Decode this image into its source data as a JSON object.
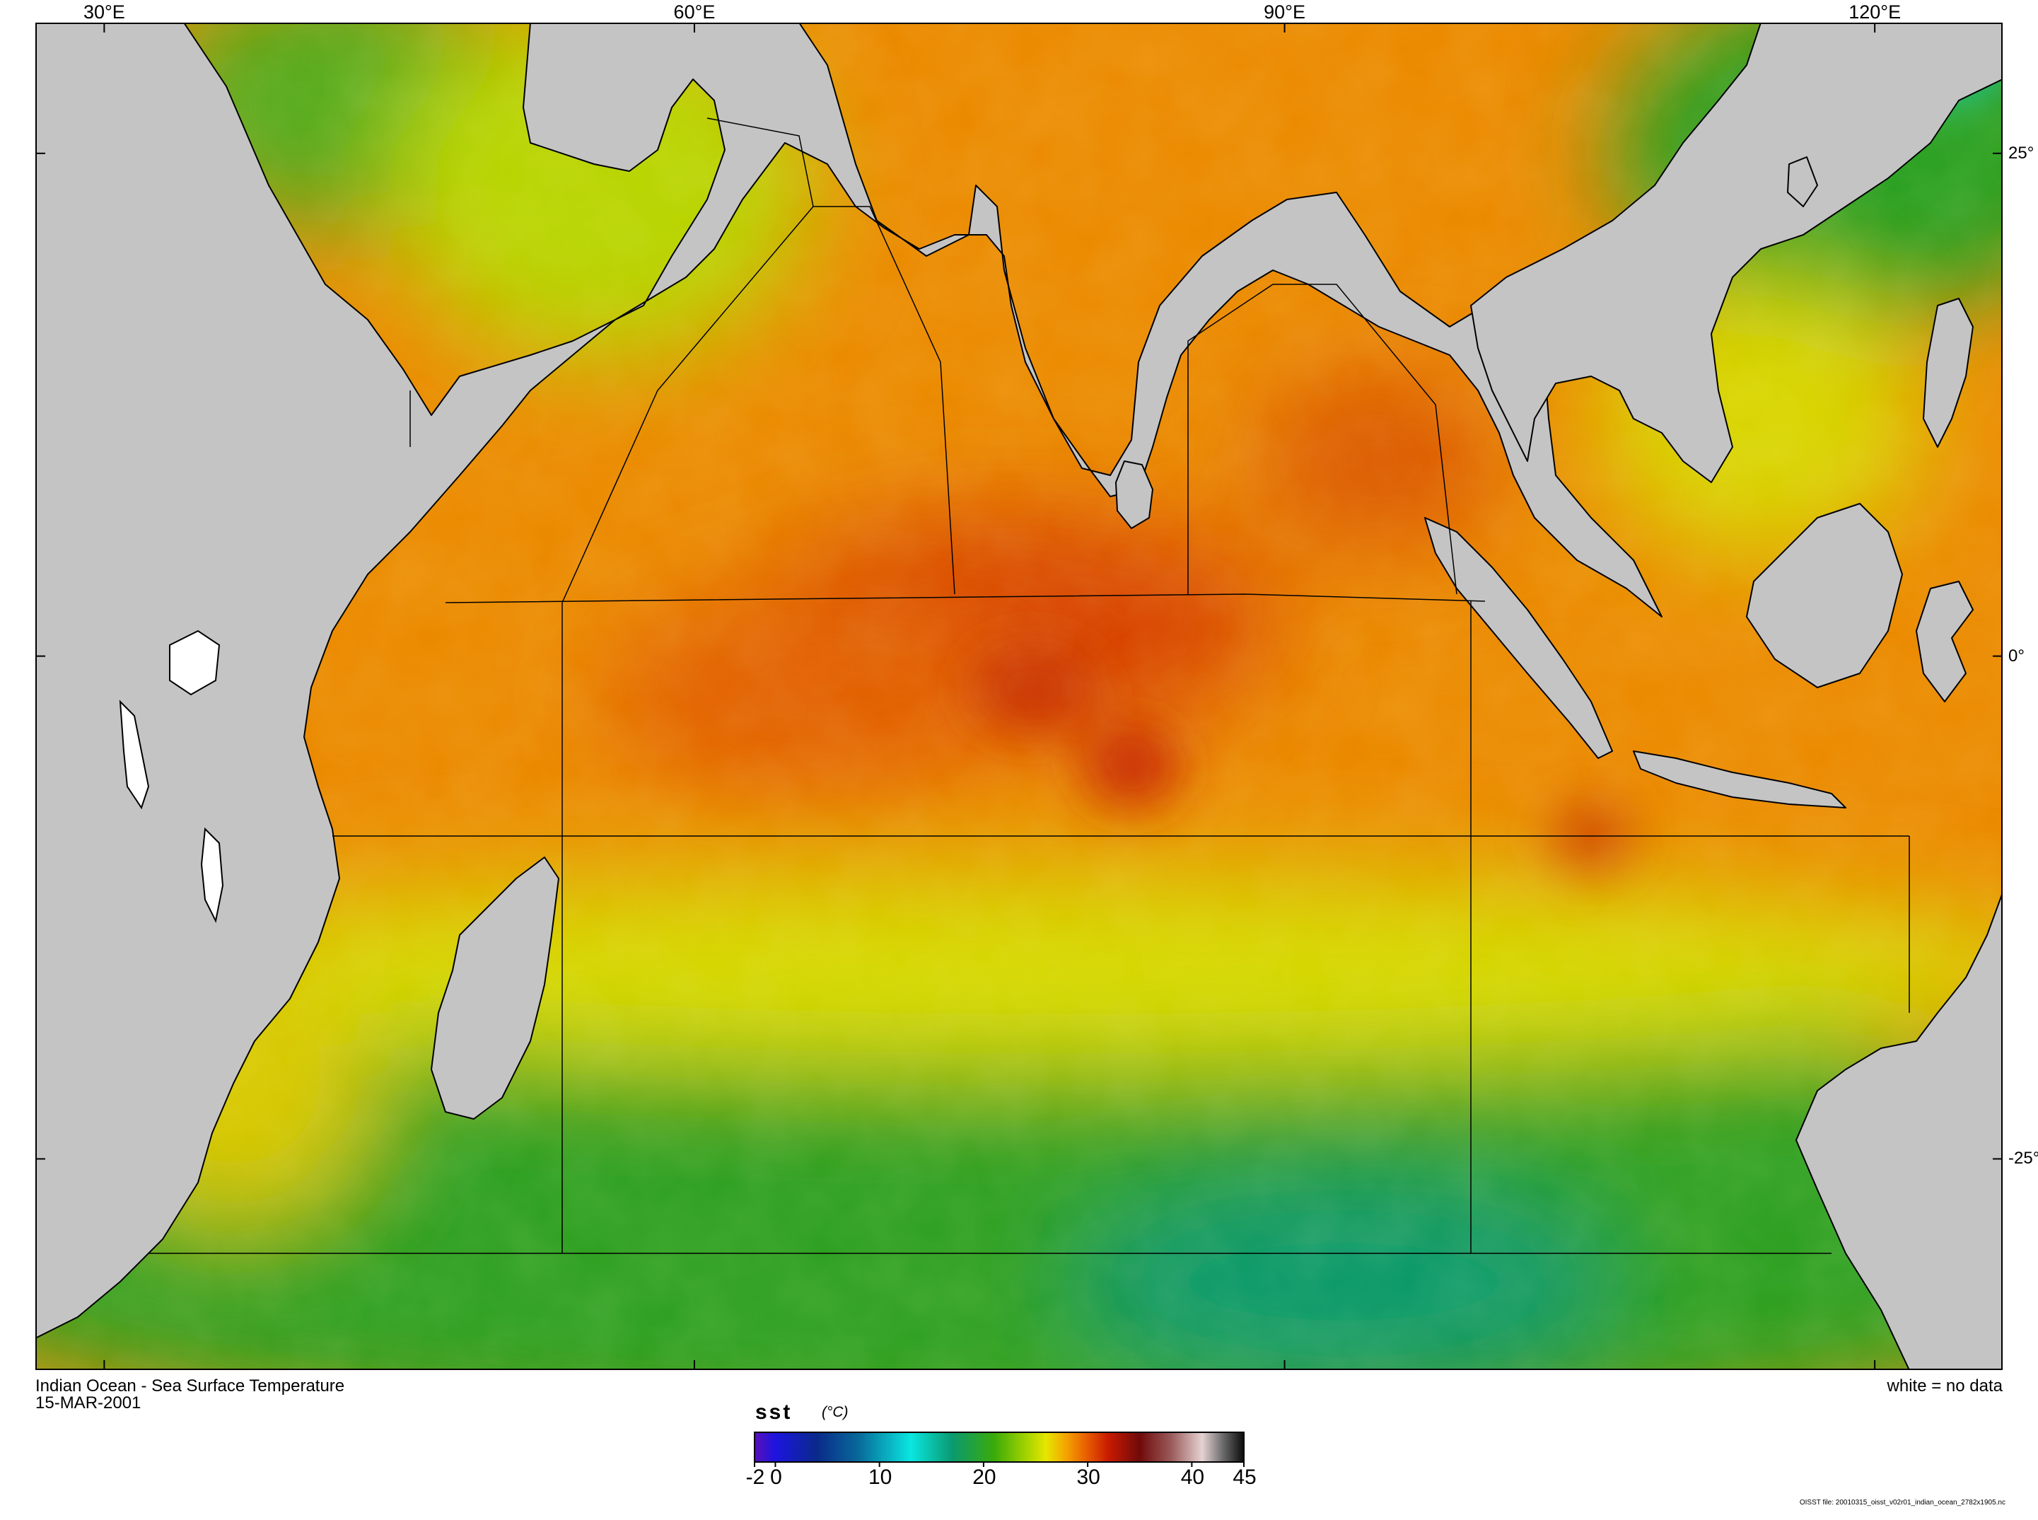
{
  "map": {
    "longitude_labels": [
      {
        "lon": 30,
        "text": "30°E"
      },
      {
        "lon": 60,
        "text": "60°E"
      },
      {
        "lon": 90,
        "text": "90°E"
      },
      {
        "lon": 120,
        "text": "120°E"
      }
    ],
    "latitude_labels": [
      {
        "lat": 25,
        "text": "25°"
      },
      {
        "lat": 0,
        "text": "0°"
      },
      {
        "lat": -25,
        "text": "-25°"
      }
    ],
    "extent": {
      "lon_min": 26.5,
      "lon_max": 126.5,
      "lat_min": -35.5,
      "lat_max": 31.5
    },
    "land_color": "#c4c4c4",
    "nodata_color": "#ffffff"
  },
  "caption": {
    "title": "Indian Ocean - Sea Surface Temperature",
    "date": "15-MAR-2001",
    "no_data_note": "white = no data"
  },
  "colorbar": {
    "variable": "sst",
    "units": "(°C)",
    "min": -2,
    "max": 45,
    "tick_labels": [
      {
        "value": -2,
        "text": "-2"
      },
      {
        "value": 0,
        "text": "0"
      },
      {
        "value": 10,
        "text": "10"
      },
      {
        "value": 20,
        "text": "20"
      },
      {
        "value": 30,
        "text": "30"
      },
      {
        "value": 40,
        "text": "40"
      },
      {
        "value": 45,
        "text": "45"
      }
    ],
    "color_stops": [
      {
        "value": -2,
        "color": "#5a10b8"
      },
      {
        "value": 0,
        "color": "#1c14e0"
      },
      {
        "value": 4,
        "color": "#0a2a8a"
      },
      {
        "value": 8,
        "color": "#086a9a"
      },
      {
        "value": 13,
        "color": "#0ae6e0"
      },
      {
        "value": 17,
        "color": "#0a9a70"
      },
      {
        "value": 21,
        "color": "#3aaa0a"
      },
      {
        "value": 24,
        "color": "#a0d200"
      },
      {
        "value": 26,
        "color": "#e6e600"
      },
      {
        "value": 28,
        "color": "#f5a000"
      },
      {
        "value": 30,
        "color": "#e65a00"
      },
      {
        "value": 32,
        "color": "#c81a00"
      },
      {
        "value": 35,
        "color": "#700a0a"
      },
      {
        "value": 38,
        "color": "#9a5a5a"
      },
      {
        "value": 41,
        "color": "#e6d2d2"
      },
      {
        "value": 43,
        "color": "#6a6a6a"
      },
      {
        "value": 45,
        "color": "#0a0a0a"
      }
    ]
  },
  "footer": {
    "file": "OISST file: 20010315_oisst_v02r01_indian_ocean_2782x1905.nc"
  }
}
